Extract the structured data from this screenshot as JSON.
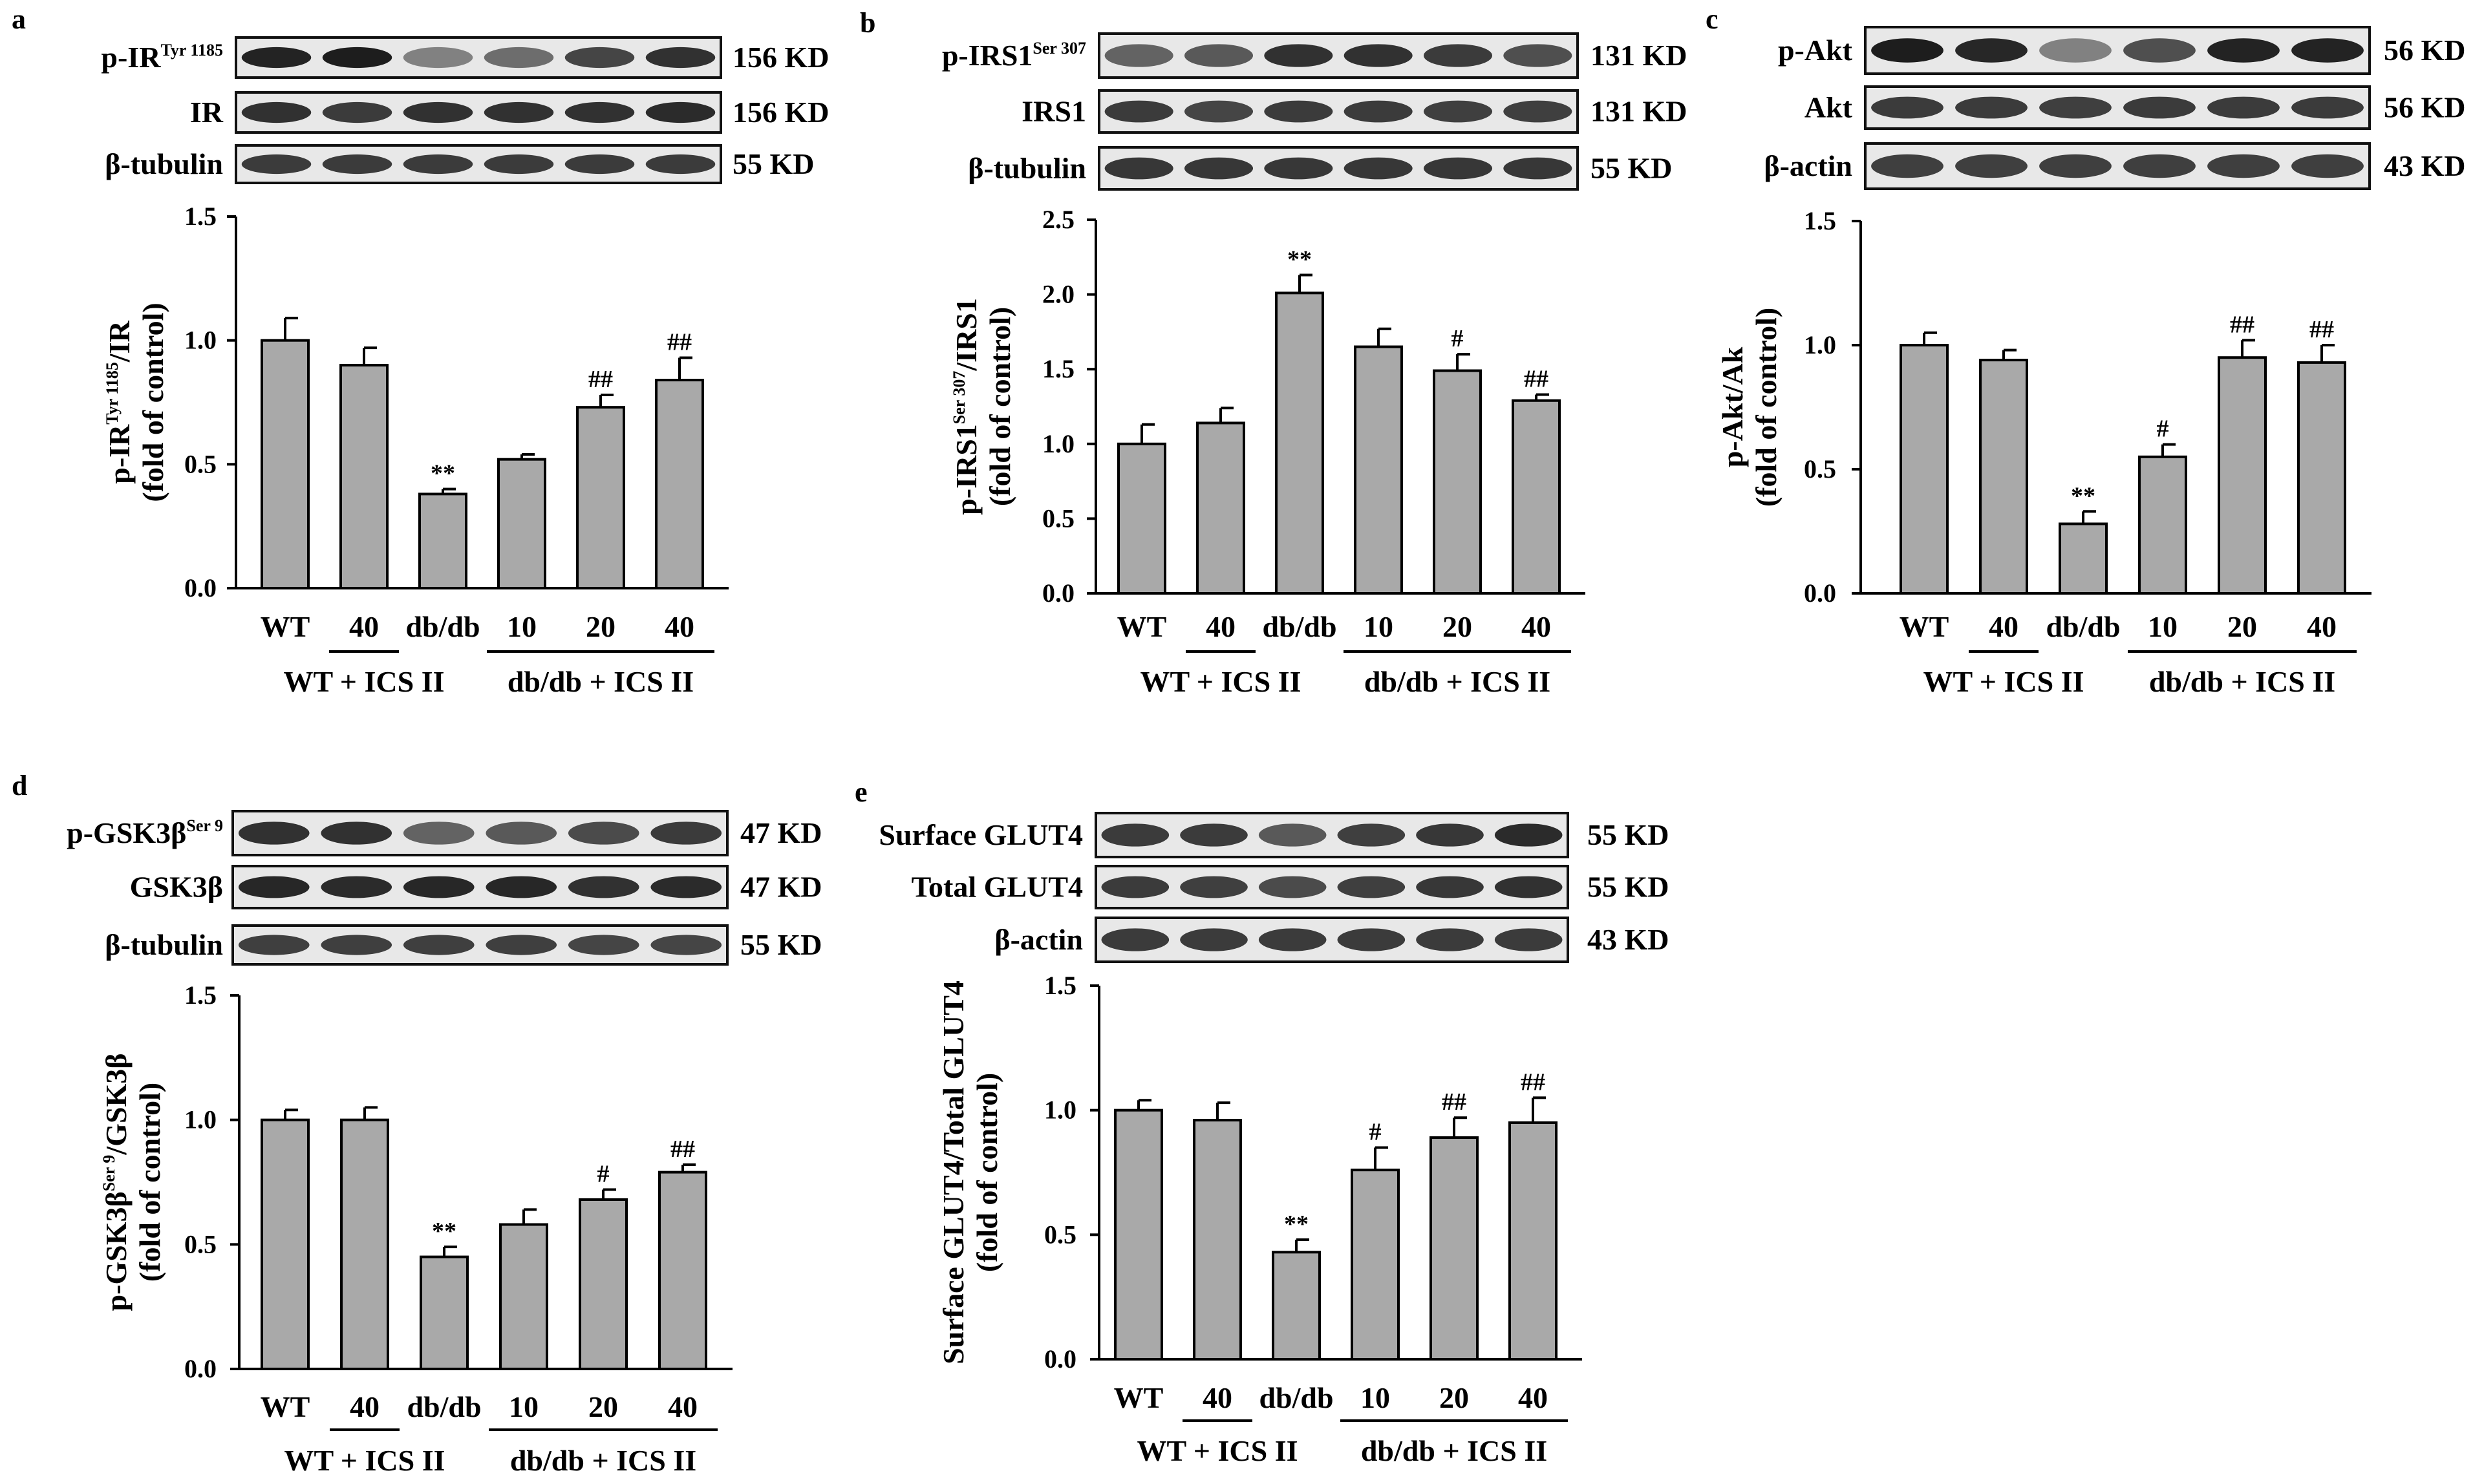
{
  "panels": [
    {
      "letter": "a",
      "blots": [
        {
          "label": "p-IR",
          "sup": "Tyr 1185",
          "size": "156 KD",
          "intensities": [
            0.92,
            0.95,
            0.45,
            0.55,
            0.75,
            0.85
          ]
        },
        {
          "label": "IR",
          "sup": "",
          "size": "156 KD",
          "intensities": [
            0.85,
            0.8,
            0.85,
            0.85,
            0.85,
            0.88
          ]
        },
        {
          "label": "β-tubulin",
          "sup": "",
          "size": "55 KD",
          "intensities": [
            0.8,
            0.8,
            0.8,
            0.8,
            0.8,
            0.8
          ]
        }
      ],
      "chart_data": {
        "type": "bar",
        "categories": [
          "WT",
          "40",
          "db/db",
          "10",
          "20",
          "40"
        ],
        "values": [
          1.0,
          0.9,
          0.38,
          0.52,
          0.73,
          0.84
        ],
        "errors": [
          0.09,
          0.07,
          0.02,
          0.02,
          0.05,
          0.09
        ],
        "annotations": [
          "",
          "",
          "**",
          "",
          "##",
          "##"
        ],
        "ylabel_line1": "p-IR",
        "ylabel_sup": "Tyr 1185",
        "ylabel_line1_tail": "/IR",
        "ylabel_line2": "(fold of control)",
        "ylim": [
          0,
          1.5
        ],
        "yticks": [
          "0.0",
          "0.5",
          "1.0",
          "1.5"
        ],
        "groups": [
          {
            "label": "WT + ICS II",
            "from": 1,
            "to": 1
          },
          {
            "label": "db/db + ICS II",
            "from": 3,
            "to": 5
          }
        ]
      }
    },
    {
      "letter": "b",
      "blots": [
        {
          "label": "p-IRS1",
          "sup": "Ser 307",
          "size": "131 KD",
          "intensities": [
            0.6,
            0.65,
            0.85,
            0.85,
            0.8,
            0.7
          ]
        },
        {
          "label": "IRS1",
          "sup": "",
          "size": "131 KD",
          "intensities": [
            0.8,
            0.75,
            0.8,
            0.8,
            0.78,
            0.78
          ]
        },
        {
          "label": "β-tubulin",
          "sup": "",
          "size": "55 KD",
          "intensities": [
            0.82,
            0.82,
            0.82,
            0.82,
            0.82,
            0.82
          ]
        }
      ],
      "chart_data": {
        "type": "bar",
        "categories": [
          "WT",
          "40",
          "db/db",
          "10",
          "20",
          "40"
        ],
        "values": [
          1.0,
          1.14,
          2.01,
          1.65,
          1.49,
          1.29
        ],
        "errors": [
          0.13,
          0.1,
          0.12,
          0.12,
          0.11,
          0.04
        ],
        "annotations": [
          "",
          "",
          "**",
          "",
          "#",
          "##"
        ],
        "ylabel_line1": "p-IRS1",
        "ylabel_sup": "Ser 307",
        "ylabel_line1_tail": "/IRS1",
        "ylabel_line2": "(fold of control)",
        "ylim": [
          0,
          2.5
        ],
        "yticks": [
          "0.0",
          "0.5",
          "1.0",
          "1.5",
          "2.0",
          "2.5"
        ],
        "groups": [
          {
            "label": "WT + ICS II",
            "from": 1,
            "to": 1
          },
          {
            "label": "db/db + ICS II",
            "from": 3,
            "to": 5
          }
        ]
      }
    },
    {
      "letter": "c",
      "blots": [
        {
          "label": "p-Akt",
          "sup": "",
          "size": "56 KD",
          "intensities": [
            0.95,
            0.9,
            0.45,
            0.7,
            0.92,
            0.92
          ]
        },
        {
          "label": "Akt",
          "sup": "",
          "size": "56 KD",
          "intensities": [
            0.8,
            0.8,
            0.78,
            0.8,
            0.8,
            0.8
          ]
        },
        {
          "label": "β-actin",
          "sup": "",
          "size": "43 KD",
          "intensities": [
            0.78,
            0.78,
            0.78,
            0.78,
            0.78,
            0.78
          ]
        }
      ],
      "chart_data": {
        "type": "bar",
        "categories": [
          "WT",
          "40",
          "db/db",
          "10",
          "20",
          "40"
        ],
        "values": [
          1.0,
          0.94,
          0.28,
          0.55,
          0.95,
          0.93
        ],
        "errors": [
          0.05,
          0.04,
          0.05,
          0.05,
          0.07,
          0.07
        ],
        "annotations": [
          "",
          "",
          "**",
          "#",
          "##",
          "##"
        ],
        "ylabel_line1": "p-Akt/Ak",
        "ylabel_sup": "",
        "ylabel_line1_tail": "",
        "ylabel_line2": "(fold of control)",
        "ylim": [
          0,
          1.5
        ],
        "yticks": [
          "0.0",
          "0.5",
          "1.0",
          "1.5"
        ],
        "groups": [
          {
            "label": "WT + ICS II",
            "from": 1,
            "to": 1
          },
          {
            "label": "db/db + ICS II",
            "from": 3,
            "to": 5
          }
        ]
      }
    },
    {
      "letter": "d",
      "blots": [
        {
          "label": "p-GSK3β",
          "sup": "Ser 9",
          "size": "47 KD",
          "intensities": [
            0.85,
            0.85,
            0.6,
            0.65,
            0.72,
            0.8
          ]
        },
        {
          "label": "GSK3β",
          "sup": "",
          "size": "47 KD",
          "intensities": [
            0.9,
            0.88,
            0.9,
            0.9,
            0.85,
            0.88
          ]
        },
        {
          "label": "β-tubulin",
          "sup": "",
          "size": "55 KD",
          "intensities": [
            0.78,
            0.78,
            0.78,
            0.78,
            0.75,
            0.75
          ]
        }
      ],
      "chart_data": {
        "type": "bar",
        "categories": [
          "WT",
          "40",
          "db/db",
          "10",
          "20",
          "40"
        ],
        "values": [
          1.0,
          1.0,
          0.45,
          0.58,
          0.68,
          0.79
        ],
        "errors": [
          0.04,
          0.05,
          0.04,
          0.06,
          0.04,
          0.03
        ],
        "annotations": [
          "",
          "",
          "**",
          "",
          "#",
          "##"
        ],
        "ylabel_line1": "p-GSK3β",
        "ylabel_sup": "Ser 9",
        "ylabel_line1_tail": "/GSK3β",
        "ylabel_line2": "(fold of control)",
        "ylim": [
          0,
          1.5
        ],
        "yticks": [
          "0.0",
          "0.5",
          "1.0",
          "1.5"
        ],
        "groups": [
          {
            "label": "WT + ICS II",
            "from": 1,
            "to": 1
          },
          {
            "label": "db/db + ICS II",
            "from": 3,
            "to": 5
          }
        ]
      }
    },
    {
      "letter": "e",
      "blots": [
        {
          "label": "Surface GLUT4",
          "sup": "",
          "size": "55 KD",
          "intensities": [
            0.8,
            0.8,
            0.65,
            0.78,
            0.82,
            0.88
          ]
        },
        {
          "label": "Total GLUT4",
          "sup": "",
          "size": "55 KD",
          "intensities": [
            0.8,
            0.78,
            0.72,
            0.78,
            0.82,
            0.85
          ]
        },
        {
          "label": "β-actin",
          "sup": "",
          "size": "43 KD",
          "intensities": [
            0.8,
            0.8,
            0.8,
            0.8,
            0.8,
            0.8
          ]
        }
      ],
      "chart_data": {
        "type": "bar",
        "categories": [
          "WT",
          "40",
          "db/db",
          "10",
          "20",
          "40"
        ],
        "values": [
          1.0,
          0.96,
          0.43,
          0.76,
          0.89,
          0.95
        ],
        "errors": [
          0.04,
          0.07,
          0.05,
          0.09,
          0.08,
          0.1
        ],
        "annotations": [
          "",
          "",
          "**",
          "#",
          "##",
          "##"
        ],
        "ylabel_line1": "Surface GLUT4/Total GLUT4",
        "ylabel_sup": "",
        "ylabel_line1_tail": "",
        "ylabel_line2": "(fold of control)",
        "ylim": [
          0,
          1.5
        ],
        "yticks": [
          "0.0",
          "0.5",
          "1.0",
          "1.5"
        ],
        "groups": [
          {
            "label": "WT + ICS II",
            "from": 1,
            "to": 1
          },
          {
            "label": "db/db + ICS II",
            "from": 3,
            "to": 5
          }
        ]
      }
    }
  ]
}
